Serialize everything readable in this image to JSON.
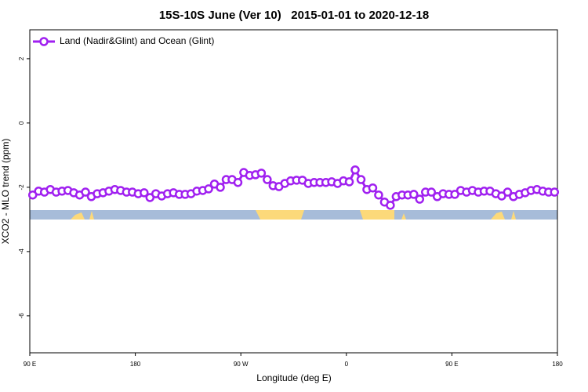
{
  "chart_data": {
    "type": "line",
    "title": "15S-10S June (Ver 10)   2015-01-01 to 2020-12-18",
    "x_label": "Longitude (deg E)",
    "y_label": "XCO2 - MLO trend (ppm)",
    "xlim": [
      90,
      540
    ],
    "ylim": [
      -7.15,
      2.9
    ],
    "xticks": [
      {
        "value": 90,
        "label": "90 E"
      },
      180,
      {
        "value": 270,
        "label": "90 W"
      },
      {
        "value": 360,
        "label": "0"
      },
      {
        "value": 450,
        "label": "90 E"
      },
      {
        "value": 540,
        "label": "180"
      }
    ],
    "yticks": [
      2,
      0,
      -2,
      -4,
      -6
    ],
    "legend": "top-left",
    "x": [
      92.5,
      97.5,
      102.5,
      107.5,
      112.5,
      117.5,
      122.5,
      127.5,
      132.5,
      137.5,
      142.5,
      147.5,
      152.5,
      157.5,
      162.5,
      167.5,
      172.5,
      177.5,
      182.5,
      187.5,
      192.5,
      197.5,
      202.5,
      207.5,
      212.5,
      217.5,
      222.5,
      227.5,
      232.5,
      237.5,
      242.5,
      247.5,
      252.5,
      257.5,
      262.5,
      267.5,
      272.5,
      277.5,
      282.5,
      287.5,
      292.5,
      297.5,
      302.5,
      307.5,
      312.5,
      317.5,
      322.5,
      327.5,
      332.5,
      337.5,
      342.5,
      347.5,
      352.5,
      357.5,
      362.5,
      367.5,
      372.5,
      377.5,
      382.5,
      387.5,
      392.5,
      397.5,
      402.5,
      407.5,
      412.5,
      417.5,
      422.5,
      427.5,
      432.5,
      437.5,
      442.5,
      447.5,
      452.5,
      457.5,
      462.5,
      467.5,
      472.5,
      477.5,
      482.5,
      487.5,
      492.5,
      497.5,
      502.5,
      507.5,
      512.5,
      517.5,
      522.5,
      527.5,
      532.5,
      537.5
    ],
    "series": [
      {
        "name": "Land (Nadir&Glint) and Ocean (Glint)",
        "color": "#a020f0",
        "values": [
          -2.24,
          -2.12,
          -2.15,
          -2.07,
          -2.15,
          -2.12,
          -2.1,
          -2.17,
          -2.24,
          -2.15,
          -2.29,
          -2.2,
          -2.17,
          -2.12,
          -2.07,
          -2.1,
          -2.15,
          -2.15,
          -2.2,
          -2.17,
          -2.32,
          -2.2,
          -2.27,
          -2.2,
          -2.17,
          -2.22,
          -2.22,
          -2.2,
          -2.12,
          -2.1,
          -2.05,
          -1.9,
          -2.0,
          -1.76,
          -1.76,
          -1.85,
          -1.54,
          -1.63,
          -1.61,
          -1.56,
          -1.76,
          -1.95,
          -1.98,
          -1.88,
          -1.8,
          -1.78,
          -1.78,
          -1.88,
          -1.85,
          -1.85,
          -1.85,
          -1.83,
          -1.88,
          -1.8,
          -1.83,
          -1.46,
          -1.76,
          -2.07,
          -2.02,
          -2.24,
          -2.46,
          -2.56,
          -2.29,
          -2.24,
          -2.24,
          -2.22,
          -2.37,
          -2.15,
          -2.15,
          -2.29,
          -2.2,
          -2.22,
          -2.22,
          -2.1,
          -2.15,
          -2.1,
          -2.15,
          -2.12,
          -2.12,
          -2.2,
          -2.27,
          -2.15,
          -2.29,
          -2.22,
          -2.17,
          -2.1,
          -2.07,
          -2.12,
          -2.15,
          -2.15
        ]
      }
    ]
  }
}
